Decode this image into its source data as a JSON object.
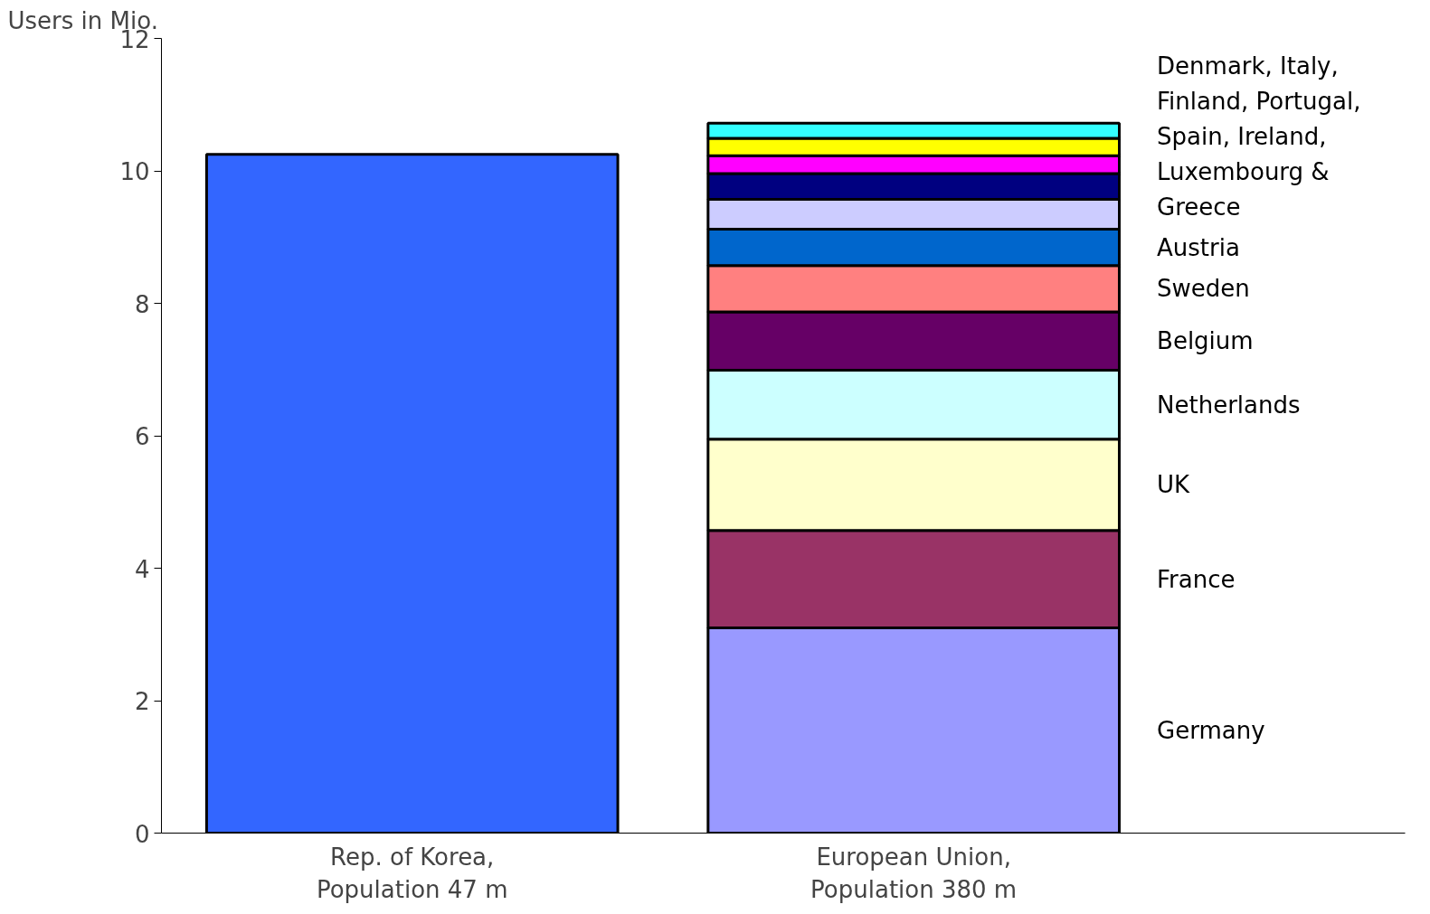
{
  "chart_data": {
    "type": "bar",
    "stacked": true,
    "ylabel": "Users in Mio.",
    "categories": [
      "Rep. of Korea,\nPopulation 47 m",
      "European Union,\nPopulation 380 m"
    ],
    "ylim": [
      0,
      12
    ],
    "yticks": [
      0,
      2,
      4,
      6,
      8,
      10,
      12
    ],
    "grid": false,
    "series": [
      {
        "color": "#3366ff",
        "values": [
          10.25,
          null
        ]
      },
      {
        "name": "Germany",
        "color": "#9999ff",
        "values": [
          null,
          3.1
        ]
      },
      {
        "name": "France",
        "color": "#993366",
        "values": [
          null,
          1.47
        ]
      },
      {
        "name": "UK",
        "color": "#ffffcc",
        "values": [
          null,
          1.38
        ]
      },
      {
        "name": "Netherlands",
        "color": "#ccffff",
        "values": [
          null,
          1.04
        ]
      },
      {
        "name": "Belgium",
        "color": "#660066",
        "values": [
          null,
          0.88
        ]
      },
      {
        "name": "Sweden",
        "color": "#ff8080",
        "values": [
          null,
          0.7
        ]
      },
      {
        "name": "Austria",
        "color": "#0066cc",
        "values": [
          null,
          0.55
        ]
      },
      {
        "color": "#ccccff",
        "values": [
          null,
          0.45
        ]
      },
      {
        "color": "#000080",
        "values": [
          null,
          0.39
        ]
      },
      {
        "color": "#ff00ff",
        "values": [
          null,
          0.27
        ]
      },
      {
        "color": "#ffff00",
        "values": [
          null,
          0.26
        ]
      },
      {
        "color": "#33ffff",
        "values": [
          null,
          0.23
        ]
      }
    ],
    "annotations": [
      "Denmark, Italy,\nFinland, Portugal,\nSpain, Ireland,\nLuxembourg &\nGreece"
    ]
  }
}
